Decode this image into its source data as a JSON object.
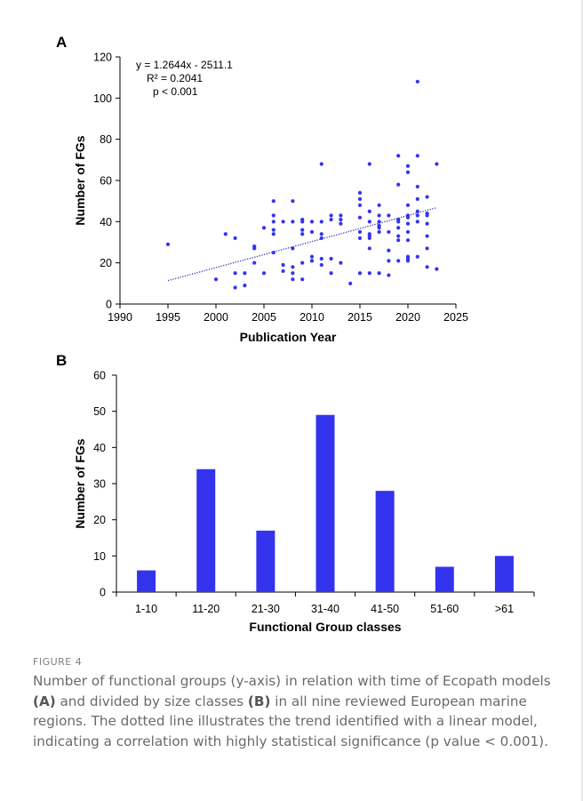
{
  "panels": {
    "a_label": "A",
    "b_label": "B"
  },
  "chart_data": [
    {
      "type": "scatter",
      "title": "",
      "xlabel": "Publication Year",
      "ylabel": "Number of FGs",
      "xlim": [
        1990,
        2025
      ],
      "ylim": [
        0,
        120
      ],
      "xticks": [
        1990,
        1995,
        2000,
        2005,
        2010,
        2015,
        2020,
        2025
      ],
      "yticks": [
        0,
        20,
        40,
        60,
        80,
        100,
        120
      ],
      "grid": false,
      "color": "#3333ee",
      "trendline": {
        "slope": 1.2644,
        "intercept": -2511.1,
        "x_range": [
          1995,
          2023
        ],
        "style": "dotted"
      },
      "annotations": [
        "y = 1.2644x - 2511.1",
        "R² = 0.2041",
        "p < 0.001"
      ],
      "points": [
        [
          1995,
          29
        ],
        [
          2000,
          12
        ],
        [
          2001,
          34
        ],
        [
          2002,
          32
        ],
        [
          2002,
          15
        ],
        [
          2002,
          8
        ],
        [
          2003,
          15
        ],
        [
          2003,
          9
        ],
        [
          2004,
          28
        ],
        [
          2004,
          27
        ],
        [
          2004,
          20
        ],
        [
          2005,
          37
        ],
        [
          2005,
          15
        ],
        [
          2006,
          50
        ],
        [
          2006,
          43
        ],
        [
          2006,
          40
        ],
        [
          2006,
          36
        ],
        [
          2006,
          34
        ],
        [
          2006,
          25
        ],
        [
          2007,
          40
        ],
        [
          2007,
          19
        ],
        [
          2007,
          16
        ],
        [
          2008,
          50
        ],
        [
          2008,
          40
        ],
        [
          2008,
          27
        ],
        [
          2008,
          18
        ],
        [
          2008,
          15
        ],
        [
          2008,
          12
        ],
        [
          2009,
          41
        ],
        [
          2009,
          40
        ],
        [
          2009,
          36
        ],
        [
          2009,
          34
        ],
        [
          2009,
          20
        ],
        [
          2009,
          12
        ],
        [
          2010,
          40
        ],
        [
          2010,
          35
        ],
        [
          2010,
          23
        ],
        [
          2010,
          21
        ],
        [
          2011,
          68
        ],
        [
          2011,
          40
        ],
        [
          2011,
          34
        ],
        [
          2011,
          32
        ],
        [
          2011,
          22
        ],
        [
          2011,
          19
        ],
        [
          2012,
          43
        ],
        [
          2012,
          41
        ],
        [
          2012,
          22
        ],
        [
          2012,
          15
        ],
        [
          2013,
          43
        ],
        [
          2013,
          41
        ],
        [
          2013,
          39
        ],
        [
          2013,
          20
        ],
        [
          2014,
          10
        ],
        [
          2015,
          54
        ],
        [
          2015,
          51
        ],
        [
          2015,
          48
        ],
        [
          2015,
          42
        ],
        [
          2015,
          35
        ],
        [
          2015,
          32
        ],
        [
          2015,
          15
        ],
        [
          2016,
          68
        ],
        [
          2016,
          45
        ],
        [
          2016,
          40
        ],
        [
          2016,
          34
        ],
        [
          2016,
          33
        ],
        [
          2016,
          32
        ],
        [
          2016,
          27
        ],
        [
          2016,
          15
        ],
        [
          2017,
          48
        ],
        [
          2017,
          43
        ],
        [
          2017,
          40
        ],
        [
          2017,
          38
        ],
        [
          2017,
          37
        ],
        [
          2017,
          35
        ],
        [
          2017,
          15
        ],
        [
          2018,
          43
        ],
        [
          2018,
          35
        ],
        [
          2018,
          26
        ],
        [
          2018,
          21
        ],
        [
          2018,
          14
        ],
        [
          2019,
          72
        ],
        [
          2019,
          58
        ],
        [
          2019,
          41
        ],
        [
          2019,
          40
        ],
        [
          2019,
          37
        ],
        [
          2019,
          33
        ],
        [
          2019,
          31
        ],
        [
          2019,
          21
        ],
        [
          2020,
          67
        ],
        [
          2020,
          64
        ],
        [
          2020,
          48
        ],
        [
          2020,
          43
        ],
        [
          2020,
          42
        ],
        [
          2020,
          39
        ],
        [
          2020,
          35
        ],
        [
          2020,
          31
        ],
        [
          2020,
          23
        ],
        [
          2020,
          22
        ],
        [
          2020,
          21
        ],
        [
          2021,
          108
        ],
        [
          2021,
          72
        ],
        [
          2021,
          57
        ],
        [
          2021,
          51
        ],
        [
          2021,
          45
        ],
        [
          2021,
          43
        ],
        [
          2021,
          40
        ],
        [
          2021,
          23
        ],
        [
          2022,
          52
        ],
        [
          2022,
          44
        ],
        [
          2022,
          43
        ],
        [
          2022,
          39
        ],
        [
          2022,
          33
        ],
        [
          2022,
          27
        ],
        [
          2022,
          18
        ],
        [
          2023,
          68
        ],
        [
          2023,
          17
        ]
      ]
    },
    {
      "type": "bar",
      "title": "",
      "xlabel": "Functional Group classes",
      "ylabel": "Number of FGs",
      "ylim": [
        0,
        60
      ],
      "yticks": [
        0,
        10,
        20,
        30,
        40,
        50,
        60
      ],
      "grid": false,
      "color": "#3333ee",
      "categories": [
        "1-10",
        "11-20",
        "21-30",
        "31-40",
        "41-50",
        "51-60",
        ">61"
      ],
      "values": [
        6,
        34,
        17,
        49,
        28,
        7,
        10
      ]
    }
  ],
  "caption": {
    "figure_label": "FIGURE 4",
    "t1": "Number of functional groups (y-axis) in relation with time of Ecopath models ",
    "b1": "(A)",
    "t2": " and divided by size classes ",
    "b2": "(B)",
    "t3": " in all nine reviewed European marine regions. The dotted line illustrates the trend identified with a linear model, indicating a correlation with highly statistical significance (p value < 0.001)."
  }
}
